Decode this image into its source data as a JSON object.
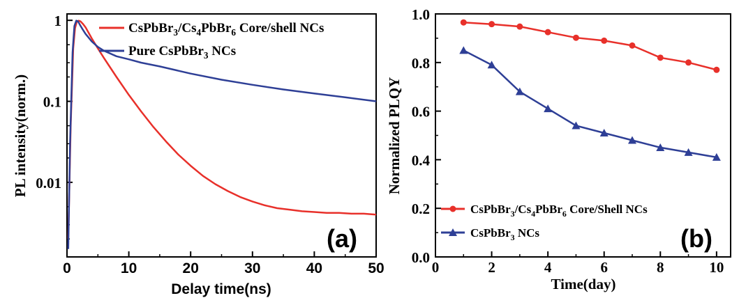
{
  "chart_data": [
    {
      "panel_label": "(a)",
      "type": "line",
      "y_scale": "log",
      "xlabel": "Delay time(ns)",
      "ylabel": "PL intensity(norm.)",
      "xlim": [
        0,
        50
      ],
      "ylim": [
        0.0012,
        1.2
      ],
      "xticks": [
        "0",
        "10",
        "20",
        "30",
        "40",
        "50"
      ],
      "yticks": [
        "1",
        "0.1",
        "0.01"
      ],
      "legend_position": "top-right",
      "series": [
        {
          "name_parts": [
            "CsPbBr",
            "3",
            "/Cs",
            "4",
            "PbBr",
            "6",
            " Core/shell NCs"
          ],
          "color": "#e8302a",
          "x": [
            0.2,
            0.6,
            1.0,
            1.3,
            1.6,
            1.9,
            2.2,
            2.6,
            3.0,
            4.0,
            5.0,
            6.0,
            8.0,
            10.0,
            12.0,
            14.0,
            16.0,
            18.0,
            20.0,
            22.0,
            24.0,
            26.0,
            28.0,
            30.0,
            32.0,
            34.0,
            36.0,
            38.0,
            40.0,
            42.0,
            44.0,
            46.0,
            48.0,
            50.0
          ],
          "y": [
            0.002,
            0.05,
            0.45,
            0.8,
            0.97,
            0.99,
            0.97,
            0.9,
            0.82,
            0.6,
            0.45,
            0.34,
            0.2,
            0.12,
            0.075,
            0.048,
            0.032,
            0.022,
            0.016,
            0.012,
            0.0095,
            0.0078,
            0.0066,
            0.0058,
            0.0052,
            0.0048,
            0.0046,
            0.0044,
            0.0043,
            0.0042,
            0.0042,
            0.0041,
            0.0041,
            0.004
          ]
        },
        {
          "name_parts": [
            "Pure CsPbBr",
            "3",
            " NCs"
          ],
          "color": "#2e3f96",
          "x": [
            0.2,
            0.5,
            0.9,
            1.2,
            1.5,
            1.8,
            2.1,
            2.5,
            3.0,
            4.0,
            5.0,
            6.0,
            8.0,
            10.0,
            12.0,
            15.0,
            20.0,
            25.0,
            30.0,
            35.0,
            40.0,
            45.0,
            50.0
          ],
          "y": [
            0.0015,
            0.03,
            0.4,
            0.85,
            0.99,
            0.97,
            0.88,
            0.78,
            0.68,
            0.55,
            0.47,
            0.42,
            0.36,
            0.33,
            0.3,
            0.27,
            0.22,
            0.185,
            0.16,
            0.14,
            0.125,
            0.112,
            0.1
          ]
        }
      ]
    },
    {
      "panel_label": "(b)",
      "type": "line",
      "xlabel": "Time(day)",
      "ylabel": "Normalized PLQY",
      "xlim": [
        0,
        10.5
      ],
      "ylim": [
        0.0,
        1.0
      ],
      "xticks": [
        "0",
        "2",
        "4",
        "6",
        "8",
        "10"
      ],
      "yticks": [
        "0.0",
        "0.2",
        "0.4",
        "0.6",
        "0.8",
        "1.0"
      ],
      "legend_position": "bottom-left",
      "series": [
        {
          "name_parts": [
            "CsPbBr",
            "3",
            "/Cs",
            "4",
            "PbBr",
            "6",
            " Core/Shell NCs"
          ],
          "color": "#e8302a",
          "marker": "circle",
          "x": [
            1,
            2,
            3,
            4,
            5,
            6,
            7,
            8,
            9,
            10
          ],
          "y": [
            0.965,
            0.958,
            0.948,
            0.925,
            0.902,
            0.89,
            0.87,
            0.82,
            0.8,
            0.77
          ]
        },
        {
          "name_parts": [
            "CsPbBr",
            "3",
            " NCs"
          ],
          "color": "#2e3f96",
          "marker": "triangle",
          "x": [
            1,
            2,
            3,
            4,
            5,
            6,
            7,
            8,
            9,
            10
          ],
          "y": [
            0.85,
            0.79,
            0.68,
            0.61,
            0.54,
            0.51,
            0.48,
            0.45,
            0.43,
            0.41
          ]
        }
      ]
    }
  ]
}
